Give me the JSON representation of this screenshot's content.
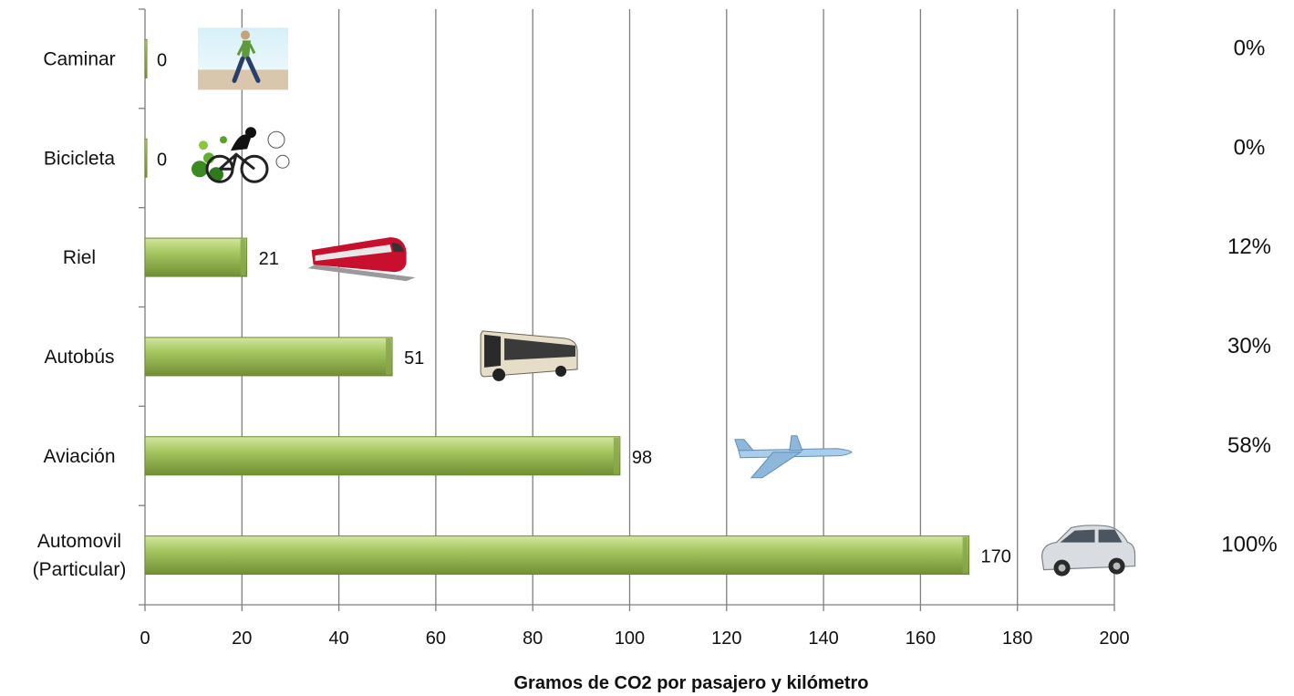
{
  "chart_data": {
    "type": "bar",
    "orientation": "horizontal",
    "categories": [
      "Caminar",
      "Bicicleta",
      "Riel",
      "Autobús",
      "Aviación",
      "Automovil (Particular)"
    ],
    "category_lines": [
      [
        "Caminar"
      ],
      [
        "Bicicleta"
      ],
      [
        "Riel"
      ],
      [
        "Autobús"
      ],
      [
        "Aviación"
      ],
      [
        "Automovil",
        "(Particular)"
      ]
    ],
    "values": [
      0,
      0,
      21,
      51,
      98,
      170
    ],
    "data_labels": [
      "0",
      "0",
      "21",
      "51",
      "98",
      "170"
    ],
    "percentages": [
      "0%",
      "0%",
      "12%",
      "30%",
      "58%",
      "100%"
    ],
    "icons": [
      "walking-person-icon",
      "bicycle-icon",
      "train-icon",
      "bus-icon",
      "airplane-icon",
      "car-icon"
    ],
    "xlabel": "Gramos de CO2 por pasajero y kilómetro",
    "xlim": [
      0,
      200
    ],
    "xticks": [
      0,
      20,
      40,
      60,
      80,
      100,
      120,
      140,
      160,
      180,
      200
    ],
    "grid": true,
    "colors": {
      "bar_fill": "#9bbb59",
      "bar_light": "#c5dc8a",
      "bar_dark": "#6d8a32",
      "grid": "#7f7f7f"
    }
  }
}
